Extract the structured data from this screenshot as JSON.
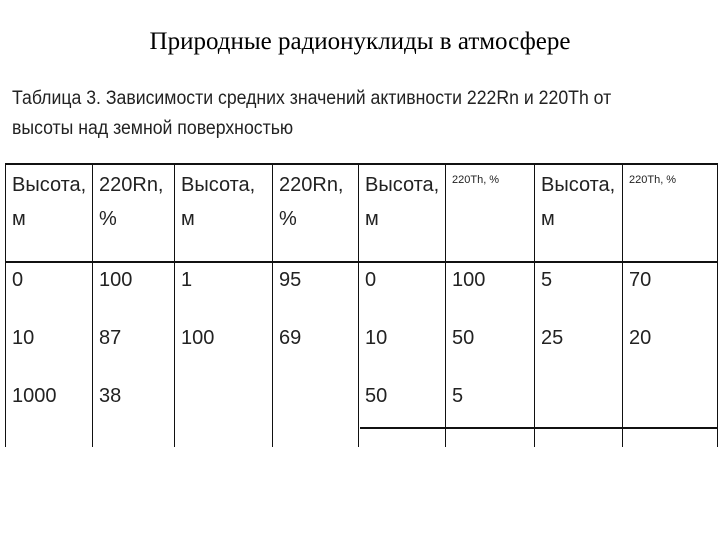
{
  "slide": {
    "title": "Природные радионуклиды в атмосфере",
    "caption": "Таблица 3. Зависимости средних значений активности 222Rn и 220Th от высоты над земной поверхностью"
  },
  "table": {
    "headers": [
      "Высота, м",
      "220Rn, %",
      "Высота, м",
      "220Rn, %",
      "Высота, м",
      "220Th, %",
      "Высота, м",
      "220Th, %"
    ],
    "rows": [
      [
        "0",
        "100",
        "1",
        "95",
        "0",
        "100",
        "5",
        "70"
      ],
      [
        "10",
        "87",
        "100",
        "69",
        "10",
        "50",
        "25",
        "20"
      ],
      [
        "1000",
        "38",
        "",
        "",
        "50",
        "5",
        "",
        ""
      ]
    ]
  }
}
